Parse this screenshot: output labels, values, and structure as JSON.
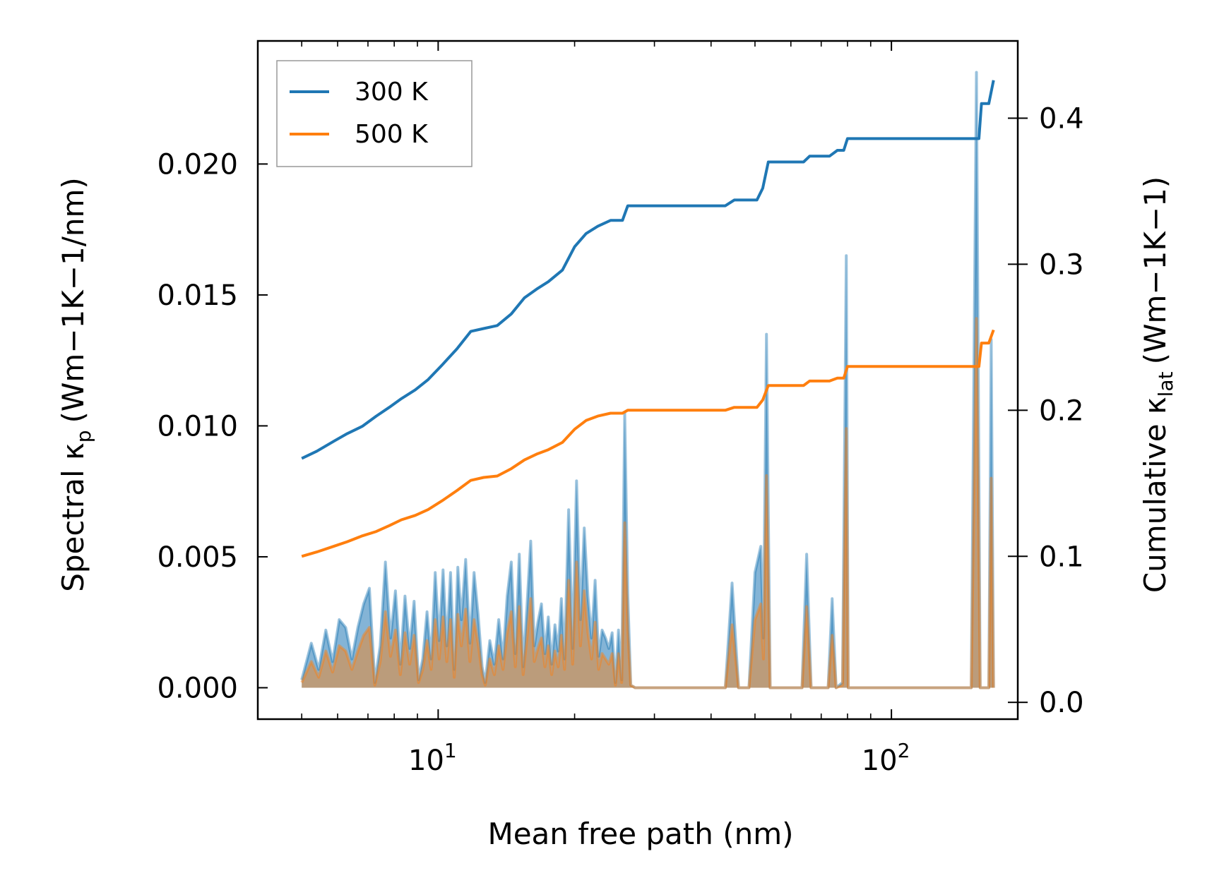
{
  "chart_data": {
    "type": "line",
    "x_scale": "log",
    "xlabel": "Mean free path (nm)",
    "ylabel_left": {
      "main": "Spectral κ",
      "sub": "p",
      "units": "(Wm−1K−1/nm)"
    },
    "ylabel_right": {
      "main": "Cumulative κ",
      "sub": "lat",
      "units": "(Wm−1K−1)"
    },
    "xlim": [
      4.0,
      190.0
    ],
    "ylim_left": [
      -0.0012,
      0.0247
    ],
    "ylim_right": [
      -0.0115,
      0.4529
    ],
    "x_ticks": [
      {
        "value": 10,
        "base": "10",
        "exp": "1"
      },
      {
        "value": 100,
        "base": "10",
        "exp": "2"
      }
    ],
    "y_ticks_left": [
      {
        "value": 0.0,
        "label": "0.000"
      },
      {
        "value": 0.005,
        "label": "0.005"
      },
      {
        "value": 0.01,
        "label": "0.010"
      },
      {
        "value": 0.015,
        "label": "0.015"
      },
      {
        "value": 0.02,
        "label": "0.020"
      }
    ],
    "y_ticks_right": [
      {
        "value": 0.0,
        "label": "0.0"
      },
      {
        "value": 0.1,
        "label": "0.1"
      },
      {
        "value": 0.2,
        "label": "0.2"
      },
      {
        "value": 0.3,
        "label": "0.3"
      },
      {
        "value": 0.4,
        "label": "0.4"
      }
    ],
    "legend": {
      "position": "top-left",
      "entries": [
        "300 K",
        "500 K"
      ]
    },
    "series": [
      {
        "name": "300 K",
        "color": "#1f77b4",
        "cumulative": {
          "x": [
            5.0,
            5.4,
            5.9,
            6.3,
            6.8,
            7.3,
            7.8,
            8.3,
            8.9,
            9.5,
            10.2,
            11.0,
            11.8,
            12.6,
            13.5,
            14.5,
            15.5,
            16.5,
            17.5,
            18.8,
            20.0,
            21.2,
            22.5,
            24.0,
            25.5,
            26.2,
            28.0,
            32.0,
            38.0,
            43.0,
            45.0,
            48.0,
            50.5,
            52.0,
            53.5,
            56.0,
            60.0,
            64.0,
            66.0,
            70.0,
            73.0,
            76.0,
            78.5,
            80.0,
            90.0,
            110.0,
            130.0,
            150.0,
            156.0,
            158.0,
            164.0,
            168.0
          ],
          "y": [
            0.167,
            0.172,
            0.179,
            0.184,
            0.189,
            0.196,
            0.202,
            0.208,
            0.214,
            0.221,
            0.231,
            0.242,
            0.254,
            0.256,
            0.258,
            0.266,
            0.277,
            0.283,
            0.288,
            0.296,
            0.312,
            0.321,
            0.326,
            0.33,
            0.33,
            0.34,
            0.34,
            0.34,
            0.34,
            0.34,
            0.344,
            0.344,
            0.344,
            0.352,
            0.37,
            0.37,
            0.37,
            0.37,
            0.374,
            0.374,
            0.374,
            0.378,
            0.378,
            0.386,
            0.386,
            0.386,
            0.386,
            0.386,
            0.386,
            0.41,
            0.41,
            0.426
          ]
        },
        "spectral": {
          "x": [
            5.0,
            5.25,
            5.45,
            5.65,
            5.85,
            6.05,
            6.25,
            6.45,
            6.65,
            6.85,
            7.05,
            7.25,
            7.45,
            7.65,
            7.85,
            8.05,
            8.25,
            8.45,
            8.65,
            8.85,
            9.05,
            9.25,
            9.45,
            9.65,
            9.85,
            10.05,
            10.25,
            10.45,
            10.65,
            10.85,
            11.05,
            11.25,
            11.5,
            11.75,
            12.0,
            12.25,
            12.5,
            12.7,
            13.0,
            13.3,
            13.6,
            13.9,
            14.2,
            14.5,
            14.8,
            15.1,
            15.4,
            15.7,
            16.0,
            16.3,
            16.6,
            16.9,
            17.2,
            17.5,
            17.8,
            18.1,
            18.4,
            18.7,
            19.0,
            19.4,
            19.8,
            20.2,
            20.6,
            21.0,
            21.4,
            21.8,
            22.2,
            22.6,
            23.0,
            23.4,
            23.8,
            24.2,
            24.6,
            25.0,
            25.4,
            25.8,
            26.2,
            26.6,
            27.2,
            43.0,
            44.5,
            46.0,
            48.5,
            50.0,
            51.5,
            52.2,
            53.0,
            54.0,
            55.5,
            63.5,
            65.0,
            66.5,
            72.5,
            74.0,
            75.5,
            78.0,
            79.5,
            80.3,
            81.5,
            150.0,
            154.0,
            157.0,
            160.0,
            164.0,
            166.0,
            168.0
          ],
          "y": [
            0.0003,
            0.0017,
            0.0007,
            0.0022,
            0.001,
            0.0026,
            0.0023,
            0.0011,
            0.0023,
            0.0032,
            0.0038,
            0.0002,
            0.0016,
            0.0048,
            0.0019,
            0.0037,
            0.0009,
            0.0035,
            0.0015,
            0.0033,
            0.0003,
            0.0011,
            0.0029,
            0.0011,
            0.0044,
            0.0018,
            0.0045,
            0.0016,
            0.0044,
            0.0007,
            0.0046,
            0.0026,
            0.0049,
            0.0017,
            0.0044,
            0.0028,
            0.0008,
            0.0002,
            0.0018,
            0.0009,
            0.0026,
            0.0011,
            0.0035,
            0.0048,
            0.0013,
            0.0051,
            0.0008,
            0.0031,
            0.0056,
            0.0016,
            0.0025,
            0.0032,
            0.0013,
            0.0027,
            0.0009,
            0.0024,
            0.0014,
            0.0034,
            0.0011,
            0.0068,
            0.0015,
            0.0079,
            0.0026,
            0.0061,
            0.0035,
            0.0019,
            0.0041,
            0.0012,
            0.0022,
            0.0019,
            0.0015,
            0.0021,
            0.0002,
            0.0022,
            0.0003,
            0.0105,
            0.0036,
            0.0001,
            0.0,
            0.0,
            0.004,
            0.0,
            0.0,
            0.0044,
            0.0054,
            0.0019,
            0.0135,
            0.0,
            0.0,
            0.0,
            0.0051,
            0.0,
            0.0,
            0.0034,
            0.0,
            0.0002,
            0.0165,
            0.0,
            0.0,
            0.0,
            0.0235,
            0.0,
            0.0,
            0.0,
            0.0133,
            0.0
          ]
        }
      },
      {
        "name": "500 K",
        "color": "#ff7f0e",
        "cumulative": {
          "x": [
            5.0,
            5.4,
            5.9,
            6.3,
            6.8,
            7.3,
            7.8,
            8.3,
            8.9,
            9.5,
            10.2,
            11.0,
            11.8,
            12.6,
            13.5,
            14.5,
            15.5,
            16.5,
            17.5,
            18.8,
            20.0,
            21.2,
            22.5,
            24.0,
            25.5,
            26.2,
            28.0,
            32.0,
            38.0,
            43.0,
            45.0,
            48.0,
            50.5,
            52.0,
            53.5,
            56.0,
            60.0,
            64.0,
            66.0,
            70.0,
            73.0,
            76.0,
            78.5,
            80.0,
            90.0,
            110.0,
            130.0,
            150.0,
            156.0,
            158.0,
            164.0,
            168.0
          ],
          "y": [
            0.1,
            0.103,
            0.107,
            0.11,
            0.114,
            0.117,
            0.121,
            0.125,
            0.128,
            0.132,
            0.138,
            0.145,
            0.152,
            0.154,
            0.155,
            0.16,
            0.166,
            0.17,
            0.173,
            0.178,
            0.187,
            0.193,
            0.196,
            0.198,
            0.198,
            0.2,
            0.2,
            0.2,
            0.2,
            0.2,
            0.202,
            0.202,
            0.202,
            0.207,
            0.217,
            0.217,
            0.217,
            0.217,
            0.22,
            0.22,
            0.22,
            0.222,
            0.222,
            0.23,
            0.23,
            0.23,
            0.23,
            0.23,
            0.23,
            0.246,
            0.246,
            0.255
          ]
        },
        "spectral": {
          "x": [
            5.0,
            5.25,
            5.45,
            5.65,
            5.85,
            6.05,
            6.25,
            6.45,
            6.65,
            6.85,
            7.05,
            7.25,
            7.45,
            7.65,
            7.85,
            8.05,
            8.25,
            8.45,
            8.65,
            8.85,
            9.05,
            9.25,
            9.45,
            9.65,
            9.85,
            10.05,
            10.25,
            10.45,
            10.65,
            10.85,
            11.05,
            11.25,
            11.5,
            11.75,
            12.0,
            12.25,
            12.5,
            12.7,
            13.0,
            13.3,
            13.6,
            13.9,
            14.2,
            14.5,
            14.8,
            15.1,
            15.4,
            15.7,
            16.0,
            16.3,
            16.6,
            16.9,
            17.2,
            17.5,
            17.8,
            18.1,
            18.4,
            18.7,
            19.0,
            19.4,
            19.8,
            20.2,
            20.6,
            21.0,
            21.4,
            21.8,
            22.2,
            22.6,
            23.0,
            23.4,
            23.8,
            24.2,
            24.6,
            25.0,
            25.4,
            25.8,
            26.2,
            26.6,
            27.2,
            43.0,
            44.5,
            46.0,
            48.5,
            50.0,
            51.5,
            52.2,
            53.0,
            54.0,
            55.5,
            63.5,
            65.0,
            66.5,
            72.5,
            74.0,
            75.5,
            78.0,
            79.5,
            80.3,
            81.5,
            150.0,
            154.0,
            157.0,
            160.0,
            164.0,
            166.0,
            168.0
          ],
          "y": [
            0.0002,
            0.001,
            0.0004,
            0.0014,
            0.0006,
            0.0016,
            0.0014,
            0.0007,
            0.0014,
            0.002,
            0.0023,
            0.0001,
            0.001,
            0.0029,
            0.0012,
            0.0022,
            0.0005,
            0.0021,
            0.0009,
            0.002,
            0.0002,
            0.0007,
            0.0018,
            0.0007,
            0.0026,
            0.0011,
            0.0027,
            0.001,
            0.0026,
            0.0004,
            0.0028,
            0.0016,
            0.003,
            0.001,
            0.0026,
            0.0017,
            0.0005,
            0.0001,
            0.0011,
            0.0005,
            0.0016,
            0.0007,
            0.0021,
            0.0029,
            0.0008,
            0.0031,
            0.0005,
            0.0019,
            0.0034,
            0.001,
            0.0015,
            0.0019,
            0.0008,
            0.0016,
            0.0005,
            0.0014,
            0.0008,
            0.002,
            0.0007,
            0.0041,
            0.0009,
            0.0048,
            0.0016,
            0.0037,
            0.0021,
            0.0011,
            0.0025,
            0.0007,
            0.0013,
            0.0011,
            0.0009,
            0.0013,
            0.0001,
            0.0013,
            0.0002,
            0.0063,
            0.0022,
            0.0001,
            0.0,
            0.0,
            0.0024,
            0.0,
            0.0,
            0.0026,
            0.0032,
            0.0011,
            0.0081,
            0.0,
            0.0,
            0.0,
            0.0031,
            0.0,
            0.0,
            0.002,
            0.0,
            0.0001,
            0.0099,
            0.0,
            0.0,
            0.0,
            0.0141,
            0.0,
            0.0,
            0.0,
            0.008,
            0.0
          ]
        }
      }
    ]
  }
}
